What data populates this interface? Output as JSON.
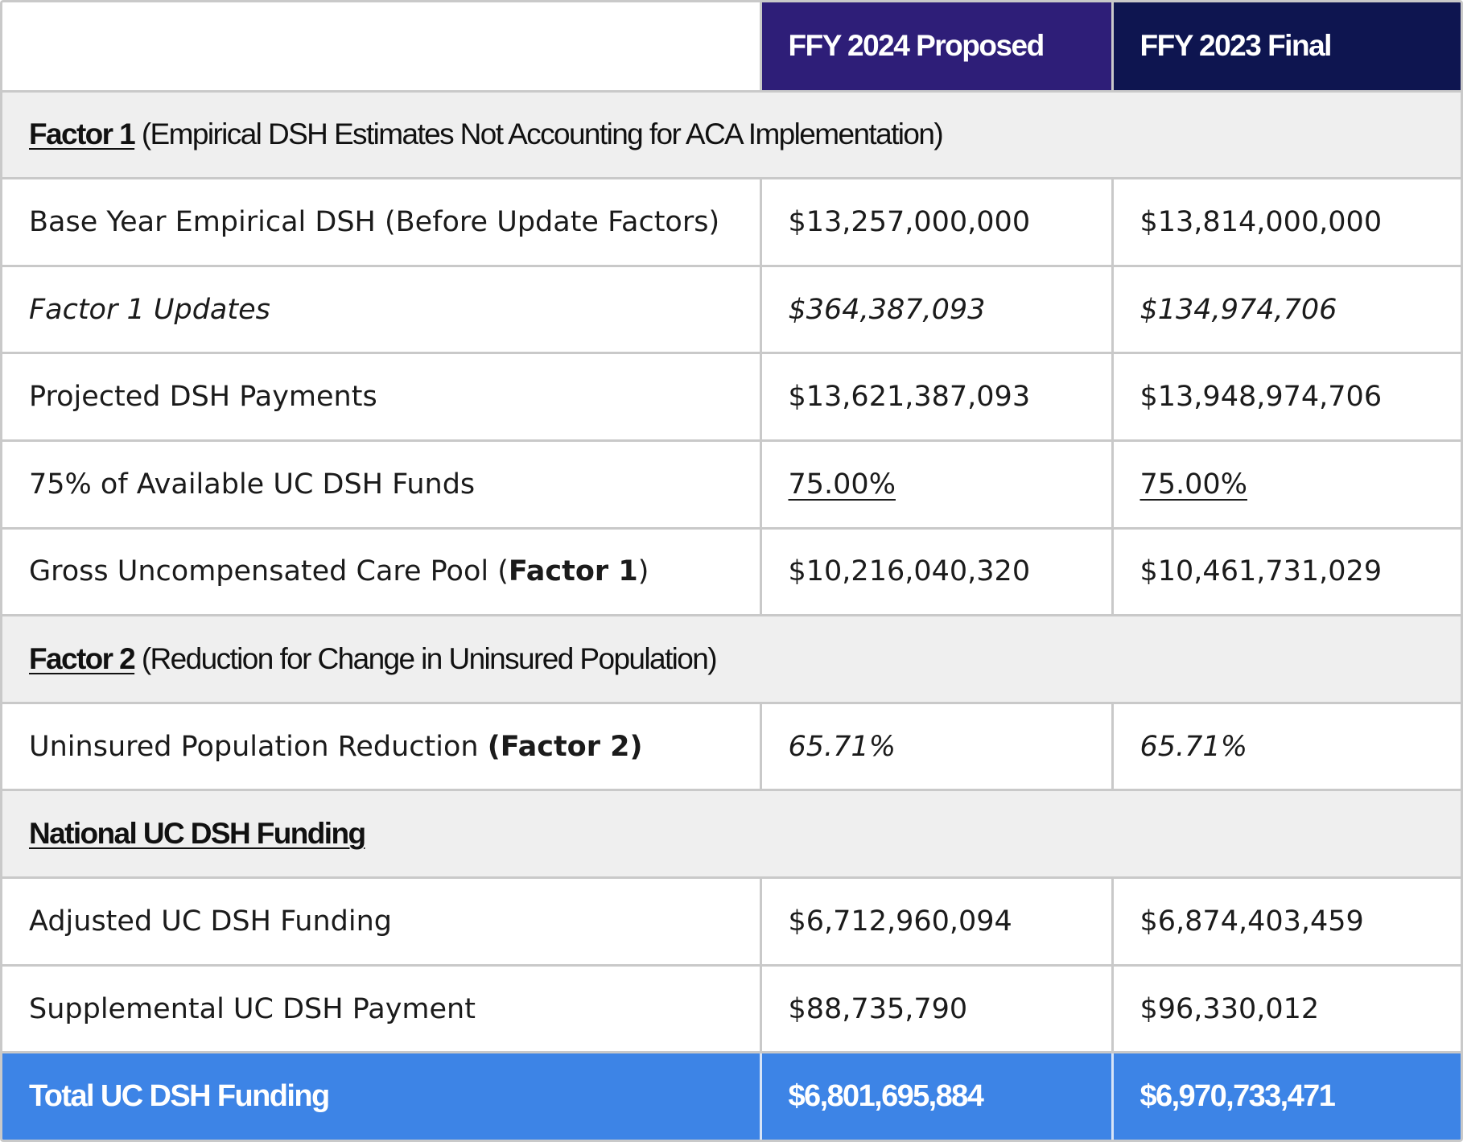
{
  "header": {
    "col_2024": "FFY 2024 Proposed",
    "col_2023": "FFY 2023 Final"
  },
  "sections": {
    "factor1": {
      "title": "Factor 1",
      "description": "(Empirical DSH Estimates Not Accounting for ACA Implementation)"
    },
    "factor2": {
      "title": "Factor 2",
      "description": "(Reduction for Change in Uninsured Population)"
    },
    "national": {
      "title": "National UC DSH Funding"
    }
  },
  "rows": {
    "base_year": {
      "label": "Base Year Empirical DSH (Before Update Factors)",
      "ffy2024": "$13,257,000,000",
      "ffy2023": "$13,814,000,000"
    },
    "factor1_updates": {
      "label": "Factor 1 Updates",
      "ffy2024": "$364,387,093",
      "ffy2023": "$134,974,706"
    },
    "projected_dsh": {
      "label": "Projected DSH Payments",
      "ffy2024": "$13,621,387,093",
      "ffy2023": "$13,948,974,706"
    },
    "pct_available": {
      "label": "75% of Available UC DSH Funds",
      "ffy2024": "75.00%",
      "ffy2023": "75.00%"
    },
    "gross_pool": {
      "label_prefix": "Gross Uncompensated Care Pool (",
      "label_bold": "Factor 1",
      "label_suffix": ")",
      "ffy2024": "$10,216,040,320",
      "ffy2023": "$10,461,731,029"
    },
    "uninsured_reduction": {
      "label_prefix": "Uninsured Population Reduction ",
      "label_bold": "(Factor 2)",
      "ffy2024": "65.71%",
      "ffy2023": "65.71%"
    },
    "adjusted_funding": {
      "label": "Adjusted UC DSH Funding",
      "ffy2024": "$6,712,960,094",
      "ffy2023": "$6,874,403,459"
    },
    "supplemental_payment": {
      "label": "Supplemental UC DSH Payment",
      "ffy2024": "$88,735,790",
      "ffy2023": "$96,330,012"
    },
    "total": {
      "label": "Total UC DSH Funding",
      "ffy2024": "$6,801,695,884",
      "ffy2023": "$6,970,733,471"
    }
  },
  "colors": {
    "header_2024": "#2e1e78",
    "header_2023": "#0e1550",
    "section_bg": "#efefef",
    "total_bg": "#3d84e6",
    "grid": "#c9c9c9"
  }
}
